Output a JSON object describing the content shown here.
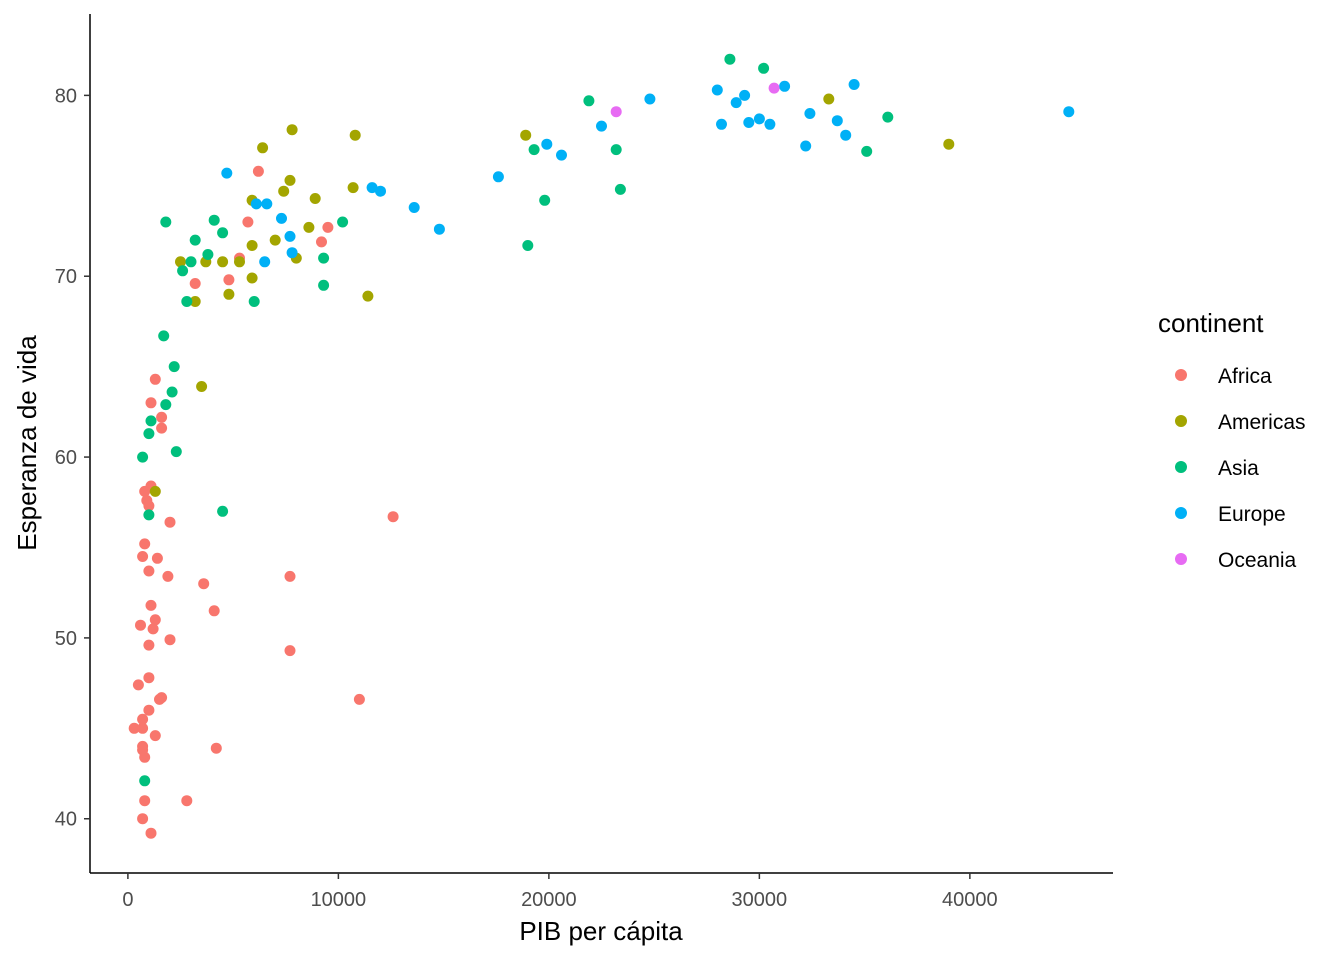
{
  "chart_data": {
    "type": "scatter",
    "xlabel": "PIB per cápita",
    "ylabel": "Esperanza de vida",
    "xlim": [
      -1800,
      46800
    ],
    "ylim": [
      37,
      84.5
    ],
    "x_ticks": [
      0,
      10000,
      20000,
      30000,
      40000
    ],
    "x_tick_labels": [
      "0",
      "10000",
      "20000",
      "30000",
      "40000"
    ],
    "y_ticks": [
      40,
      50,
      60,
      70,
      80
    ],
    "y_tick_labels": [
      "40",
      "50",
      "60",
      "70",
      "80"
    ],
    "grid": false,
    "legend": {
      "title": "continent",
      "placement": "right"
    },
    "series": [
      {
        "name": "Africa",
        "color": "#F8766D",
        "points": [
          [
            6200,
            75.8
          ],
          [
            5700,
            73.0
          ],
          [
            5300,
            71.0
          ],
          [
            4800,
            69.8
          ],
          [
            3200,
            69.6
          ],
          [
            9200,
            71.9
          ],
          [
            9500,
            72.7
          ],
          [
            1300,
            64.3
          ],
          [
            1600,
            62.2
          ],
          [
            1100,
            63.0
          ],
          [
            1600,
            61.6
          ],
          [
            1100,
            58.4
          ],
          [
            800,
            58.1
          ],
          [
            900,
            57.6
          ],
          [
            1000,
            57.3
          ],
          [
            12600,
            56.7
          ],
          [
            2000,
            56.4
          ],
          [
            800,
            55.2
          ],
          [
            1400,
            54.4
          ],
          [
            700,
            54.5
          ],
          [
            1000,
            53.7
          ],
          [
            1900,
            53.4
          ],
          [
            3600,
            53.0
          ],
          [
            7700,
            53.4
          ],
          [
            1100,
            51.8
          ],
          [
            4100,
            51.5
          ],
          [
            1300,
            51.0
          ],
          [
            600,
            50.7
          ],
          [
            1200,
            50.5
          ],
          [
            2000,
            49.9
          ],
          [
            1000,
            49.6
          ],
          [
            7700,
            49.3
          ],
          [
            1000,
            47.8
          ],
          [
            500,
            47.4
          ],
          [
            1600,
            46.7
          ],
          [
            1500,
            46.6
          ],
          [
            11000,
            46.6
          ],
          [
            1000,
            46.0
          ],
          [
            700,
            45.5
          ],
          [
            300,
            45.0
          ],
          [
            700,
            45.0
          ],
          [
            1300,
            44.6
          ],
          [
            700,
            44.0
          ],
          [
            700,
            43.8
          ],
          [
            4200,
            43.9
          ],
          [
            800,
            43.4
          ],
          [
            800,
            41.0
          ],
          [
            2800,
            41.0
          ],
          [
            700,
            40.0
          ],
          [
            1100,
            39.2
          ]
        ]
      },
      {
        "name": "Americas",
        "color": "#A3A500",
        "points": [
          [
            6400,
            77.1
          ],
          [
            7800,
            78.1
          ],
          [
            10800,
            77.8
          ],
          [
            5900,
            74.2
          ],
          [
            7400,
            74.7
          ],
          [
            7700,
            75.3
          ],
          [
            8900,
            74.3
          ],
          [
            10700,
            74.9
          ],
          [
            2500,
            70.8
          ],
          [
            3700,
            70.8
          ],
          [
            4500,
            70.8
          ],
          [
            5300,
            70.8
          ],
          [
            5900,
            71.7
          ],
          [
            7000,
            72.0
          ],
          [
            8600,
            72.7
          ],
          [
            8000,
            71.0
          ],
          [
            5900,
            69.9
          ],
          [
            3200,
            68.6
          ],
          [
            4800,
            69.0
          ],
          [
            11400,
            68.9
          ],
          [
            3500,
            63.9
          ],
          [
            1300,
            58.1
          ],
          [
            18900,
            77.8
          ],
          [
            33300,
            79.8
          ],
          [
            39000,
            77.3
          ]
        ]
      },
      {
        "name": "Asia",
        "color": "#00BF7D",
        "points": [
          [
            28600,
            82.0
          ],
          [
            30200,
            81.5
          ],
          [
            21900,
            79.7
          ],
          [
            36100,
            78.8
          ],
          [
            19300,
            77.0
          ],
          [
            23200,
            77.0
          ],
          [
            35100,
            76.9
          ],
          [
            23400,
            74.8
          ],
          [
            19800,
            74.2
          ],
          [
            19000,
            71.7
          ],
          [
            1800,
            73.0
          ],
          [
            4100,
            73.1
          ],
          [
            3200,
            72.0
          ],
          [
            4500,
            72.4
          ],
          [
            10200,
            73.0
          ],
          [
            3800,
            71.2
          ],
          [
            3000,
            70.8
          ],
          [
            2600,
            70.3
          ],
          [
            9300,
            71.0
          ],
          [
            2800,
            68.6
          ],
          [
            6000,
            68.6
          ],
          [
            9300,
            69.5
          ],
          [
            1700,
            66.7
          ],
          [
            2200,
            65.0
          ],
          [
            2100,
            63.6
          ],
          [
            1100,
            62.0
          ],
          [
            1800,
            62.9
          ],
          [
            1000,
            61.3
          ],
          [
            2300,
            60.3
          ],
          [
            700,
            60.0
          ],
          [
            4500,
            57.0
          ],
          [
            1000,
            56.8
          ],
          [
            800,
            42.1
          ]
        ]
      },
      {
        "name": "Europe",
        "color": "#00B0F6",
        "points": [
          [
            34500,
            80.6
          ],
          [
            31200,
            80.5
          ],
          [
            28000,
            80.3
          ],
          [
            29300,
            80.0
          ],
          [
            28900,
            79.6
          ],
          [
            24800,
            79.8
          ],
          [
            44700,
            79.1
          ],
          [
            32400,
            79.0
          ],
          [
            30000,
            78.7
          ],
          [
            30500,
            78.4
          ],
          [
            29500,
            78.5
          ],
          [
            28200,
            78.4
          ],
          [
            33700,
            78.6
          ],
          [
            22500,
            78.3
          ],
          [
            34100,
            77.8
          ],
          [
            19900,
            77.3
          ],
          [
            20600,
            76.7
          ],
          [
            32200,
            77.2
          ],
          [
            17600,
            75.5
          ],
          [
            4700,
            75.7
          ],
          [
            11600,
            74.9
          ],
          [
            12000,
            74.7
          ],
          [
            13600,
            73.8
          ],
          [
            14800,
            72.6
          ],
          [
            6100,
            74.0
          ],
          [
            6600,
            74.0
          ],
          [
            7300,
            73.2
          ],
          [
            7700,
            72.2
          ],
          [
            6500,
            70.8
          ],
          [
            7800,
            71.3
          ]
        ]
      },
      {
        "name": "Oceania",
        "color": "#E76BF3",
        "points": [
          [
            23200,
            79.1
          ],
          [
            30700,
            80.4
          ]
        ]
      }
    ]
  }
}
